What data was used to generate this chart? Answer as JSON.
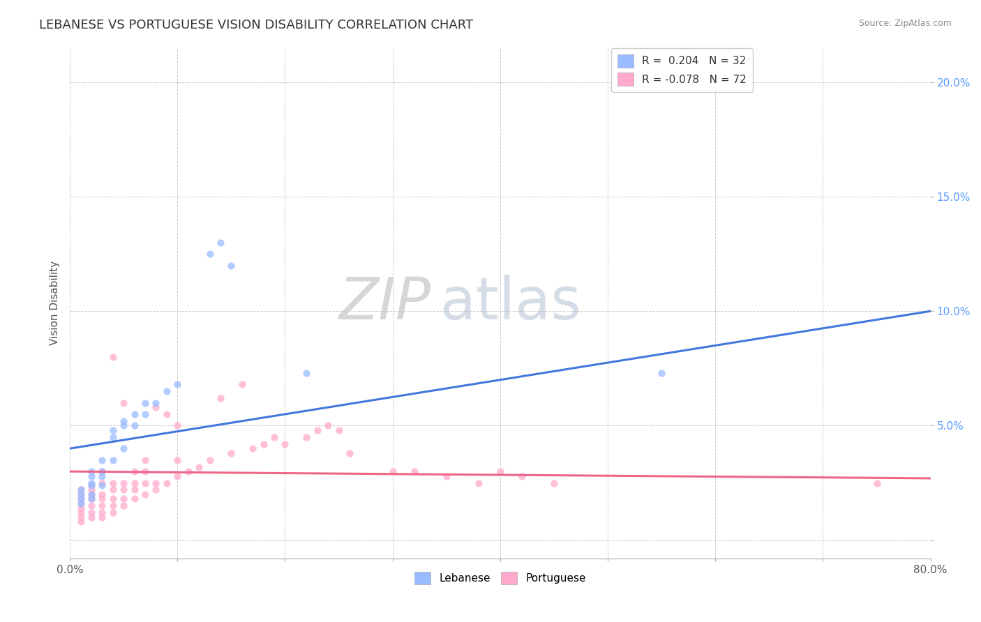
{
  "title": "LEBANESE VS PORTUGUESE VISION DISABILITY CORRELATION CHART",
  "source": "Source: ZipAtlas.com",
  "ylabel": "Vision Disability",
  "xlabel": "",
  "xlim": [
    0.0,
    0.8
  ],
  "ylim": [
    -0.008,
    0.215
  ],
  "x_ticks": [
    0.0,
    0.1,
    0.2,
    0.3,
    0.4,
    0.5,
    0.6,
    0.7,
    0.8
  ],
  "x_tick_labels": [
    "0.0%",
    "",
    "",
    "",
    "",
    "",
    "",
    "",
    "80.0%"
  ],
  "y_ticks": [
    0.0,
    0.05,
    0.1,
    0.15,
    0.2
  ],
  "y_tick_labels": [
    "",
    "5.0%",
    "10.0%",
    "15.0%",
    "20.0%"
  ],
  "legend_r1": "R =  0.204",
  "legend_n1": "N = 32",
  "legend_r2": "R = -0.078",
  "legend_n2": "N = 72",
  "color_lebanese": "#99BBFF",
  "color_portuguese": "#FFAACC",
  "color_line_lebanese": "#4477DD",
  "color_line_portuguese": "#EE6688",
  "watermark_zip": "ZIP",
  "watermark_atlas": "atlas",
  "background_color": "#FFFFFF",
  "grid_color": "#CCCCCC",
  "leb_line_x0": 0.0,
  "leb_line_y0": 0.04,
  "leb_line_x1": 0.8,
  "leb_line_y1": 0.1,
  "port_line_x0": 0.0,
  "port_line_y0": 0.03,
  "port_line_x1": 0.8,
  "port_line_y1": 0.027,
  "lebanese_x": [
    0.01,
    0.01,
    0.01,
    0.01,
    0.02,
    0.02,
    0.02,
    0.02,
    0.02,
    0.02,
    0.03,
    0.03,
    0.03,
    0.03,
    0.04,
    0.04,
    0.04,
    0.05,
    0.05,
    0.05,
    0.06,
    0.06,
    0.07,
    0.07,
    0.08,
    0.09,
    0.1,
    0.13,
    0.14,
    0.15,
    0.22,
    0.55
  ],
  "lebanese_y": [
    0.02,
    0.022,
    0.018,
    0.016,
    0.025,
    0.028,
    0.024,
    0.02,
    0.018,
    0.03,
    0.03,
    0.035,
    0.028,
    0.024,
    0.045,
    0.048,
    0.035,
    0.05,
    0.052,
    0.04,
    0.055,
    0.05,
    0.06,
    0.055,
    0.06,
    0.065,
    0.068,
    0.125,
    0.13,
    0.12,
    0.073,
    0.073
  ],
  "portuguese_x": [
    0.01,
    0.01,
    0.01,
    0.01,
    0.01,
    0.01,
    0.01,
    0.01,
    0.02,
    0.02,
    0.02,
    0.02,
    0.02,
    0.02,
    0.02,
    0.03,
    0.03,
    0.03,
    0.03,
    0.03,
    0.03,
    0.03,
    0.04,
    0.04,
    0.04,
    0.04,
    0.04,
    0.04,
    0.05,
    0.05,
    0.05,
    0.05,
    0.05,
    0.06,
    0.06,
    0.06,
    0.06,
    0.07,
    0.07,
    0.07,
    0.07,
    0.08,
    0.08,
    0.08,
    0.09,
    0.09,
    0.1,
    0.1,
    0.1,
    0.11,
    0.12,
    0.13,
    0.14,
    0.15,
    0.16,
    0.17,
    0.18,
    0.19,
    0.2,
    0.22,
    0.23,
    0.24,
    0.25,
    0.26,
    0.3,
    0.32,
    0.35,
    0.38,
    0.4,
    0.42,
    0.45,
    0.75
  ],
  "portuguese_y": [
    0.01,
    0.012,
    0.014,
    0.016,
    0.018,
    0.02,
    0.022,
    0.008,
    0.01,
    0.012,
    0.015,
    0.018,
    0.02,
    0.022,
    0.024,
    0.01,
    0.012,
    0.015,
    0.018,
    0.02,
    0.025,
    0.03,
    0.012,
    0.015,
    0.018,
    0.022,
    0.025,
    0.08,
    0.015,
    0.018,
    0.022,
    0.025,
    0.06,
    0.018,
    0.022,
    0.025,
    0.03,
    0.02,
    0.025,
    0.03,
    0.035,
    0.022,
    0.058,
    0.025,
    0.025,
    0.055,
    0.028,
    0.035,
    0.05,
    0.03,
    0.032,
    0.035,
    0.062,
    0.038,
    0.068,
    0.04,
    0.042,
    0.045,
    0.042,
    0.045,
    0.048,
    0.05,
    0.048,
    0.038,
    0.03,
    0.03,
    0.028,
    0.025,
    0.03,
    0.028,
    0.025,
    0.025
  ]
}
